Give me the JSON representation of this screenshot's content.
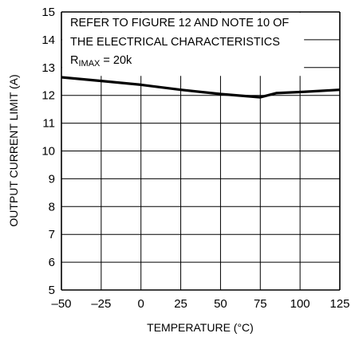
{
  "chart_data": {
    "type": "line",
    "xlabel": "TEMPERATURE (°C)",
    "ylabel": "OUTPUT CURRENT LIMIT (A)",
    "xlim": [
      -50,
      125
    ],
    "ylim": [
      5,
      15
    ],
    "xticks": [
      "–50",
      "–25",
      "0",
      "25",
      "50",
      "75",
      "100",
      "125"
    ],
    "xtick_values": [
      -50,
      -25,
      0,
      25,
      50,
      75,
      100,
      125
    ],
    "yticks": [
      "5",
      "6",
      "7",
      "8",
      "9",
      "10",
      "11",
      "12",
      "13",
      "14",
      "15"
    ],
    "ytick_values": [
      5,
      6,
      7,
      8,
      9,
      10,
      11,
      12,
      13,
      14,
      15
    ],
    "grid": true,
    "annotation": {
      "line1": "REFER TO FIGURE 12 AND NOTE 10 OF",
      "line2": "THE ELECTRICAL CHARACTERISTICS",
      "line3_main": "R",
      "line3_sub": "IMAX",
      "line3_rest": " = 20k"
    },
    "series": [
      {
        "x": [
          -50,
          -25,
          0,
          25,
          50,
          75,
          85,
          100,
          125
        ],
        "y": [
          12.65,
          12.52,
          12.38,
          12.2,
          12.05,
          11.93,
          12.08,
          12.12,
          12.2
        ]
      }
    ]
  }
}
